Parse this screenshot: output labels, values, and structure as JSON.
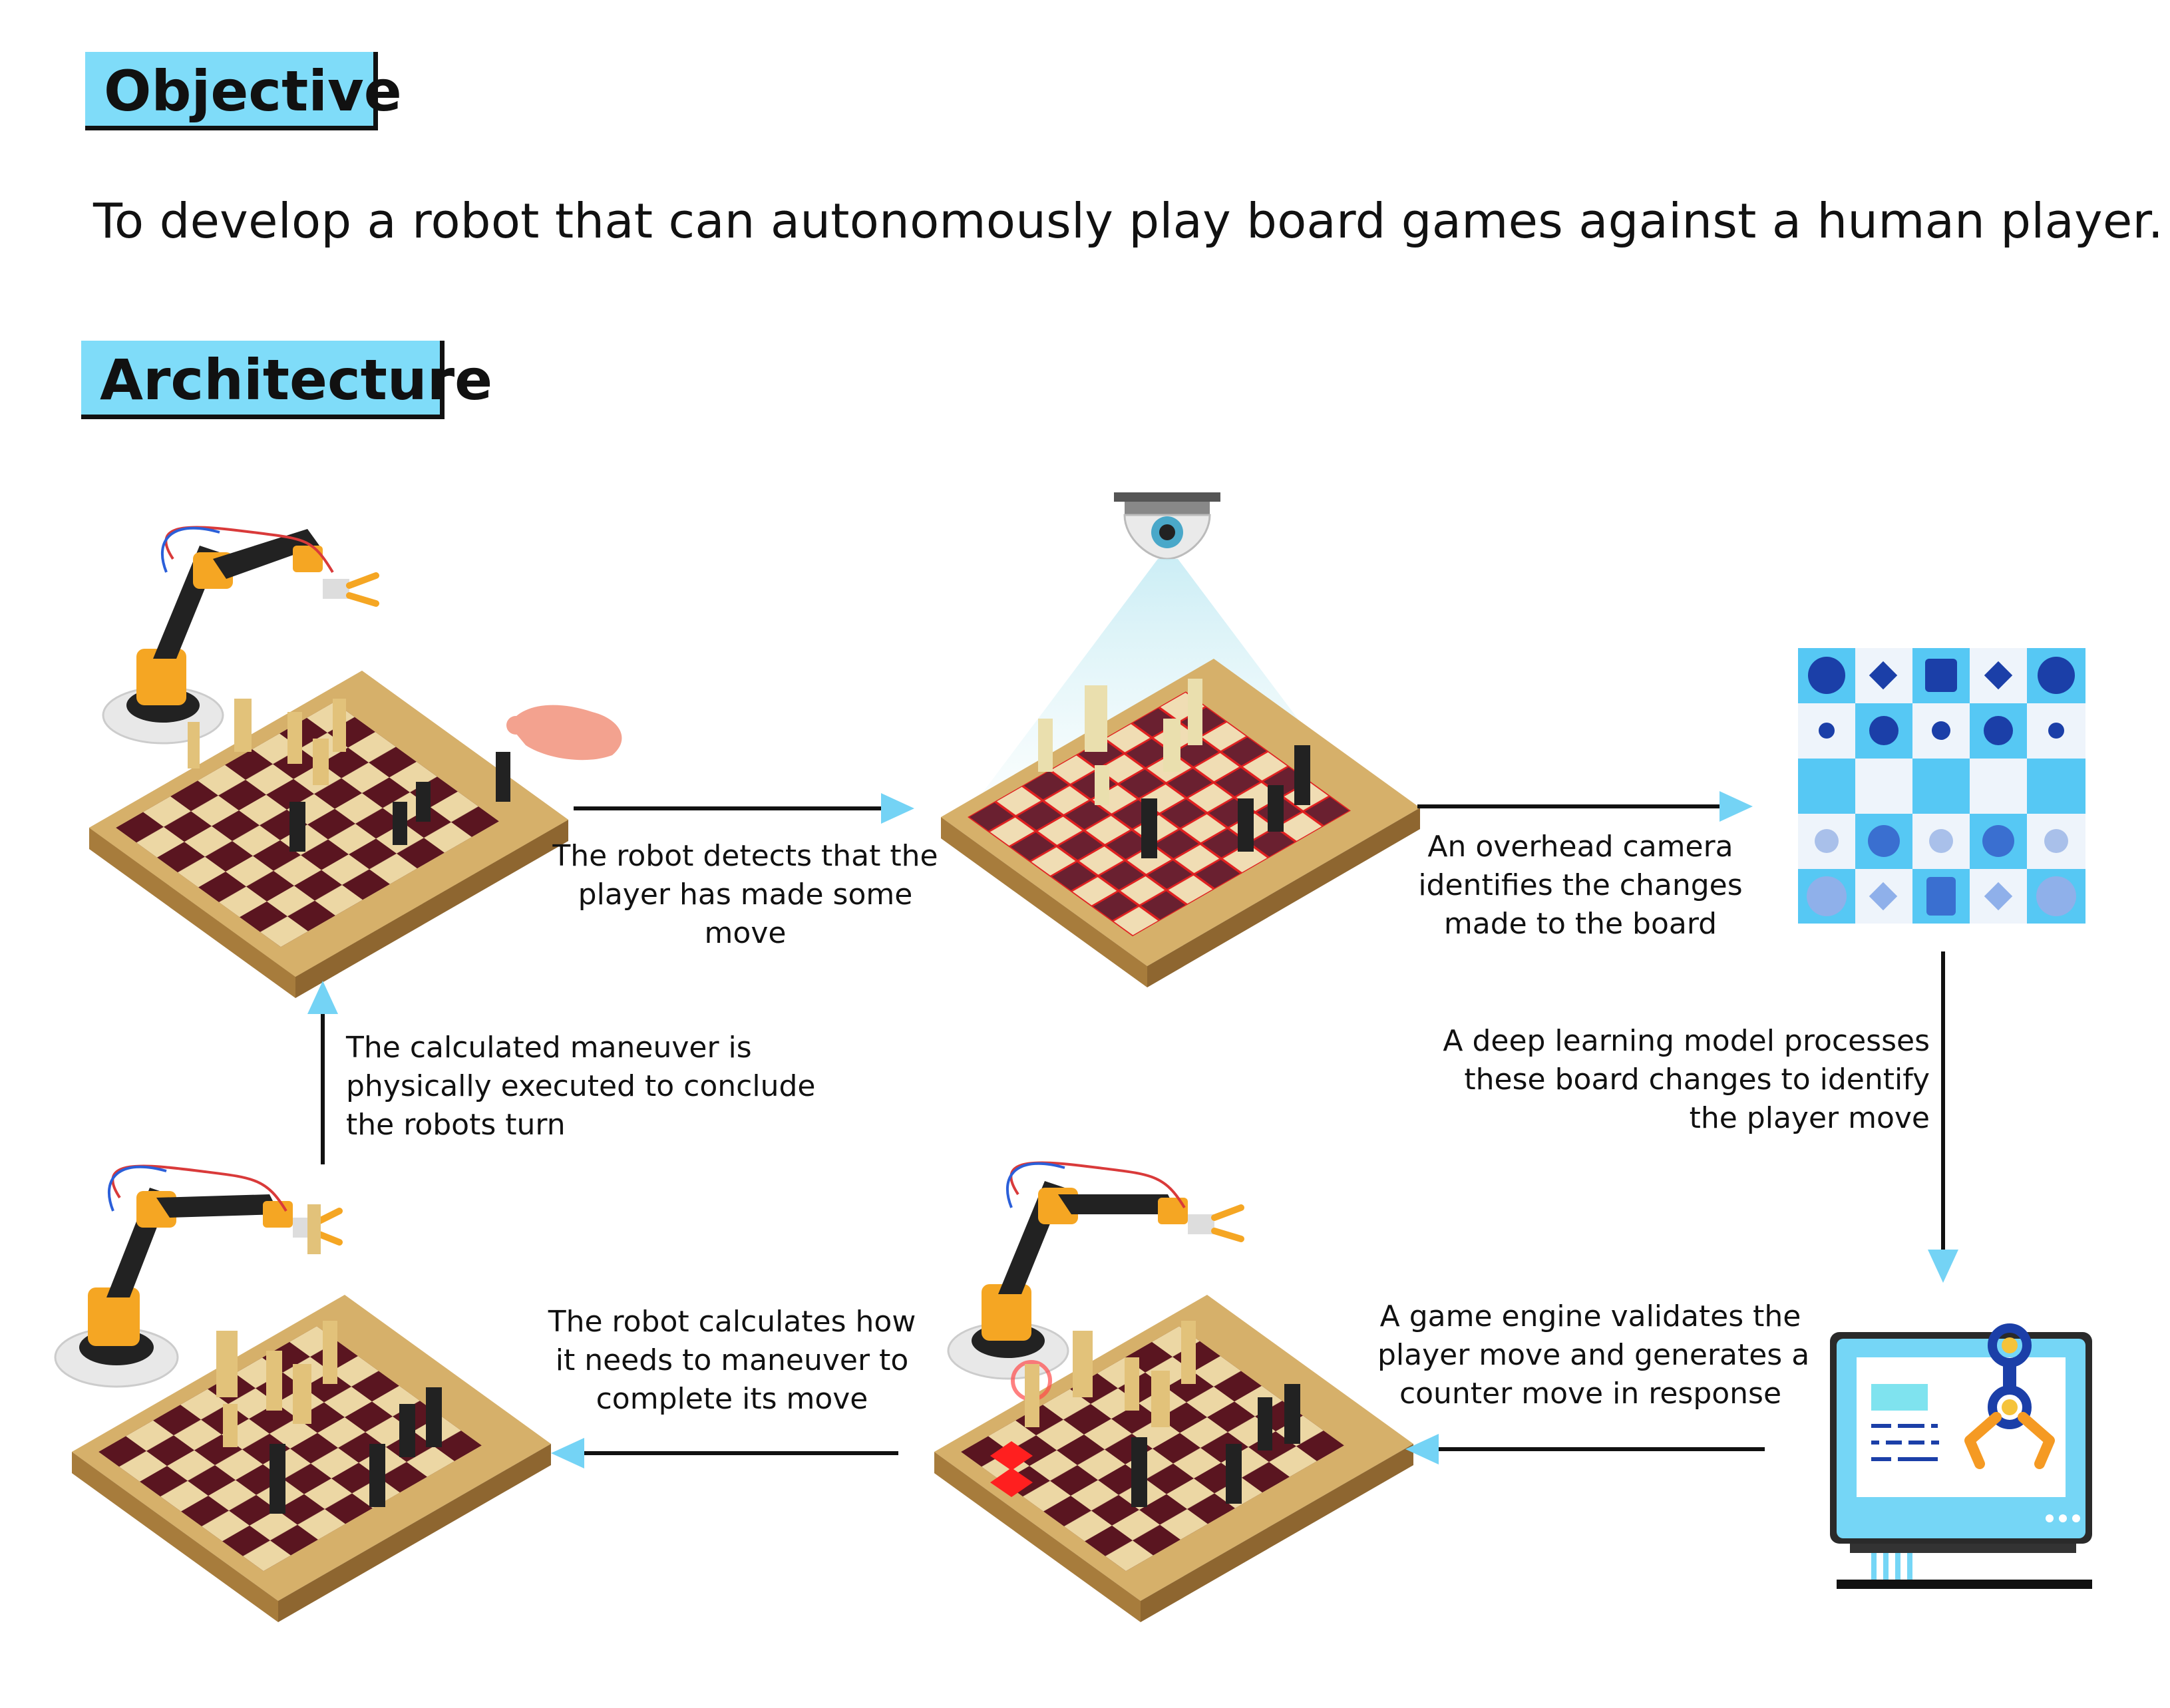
{
  "objective": {
    "heading": "Objective",
    "text": "To develop a  robot that can autonomously play board games  against a human player."
  },
  "architecture": {
    "heading": "Architecture",
    "steps": [
      {
        "id": "detect",
        "lines": [
          "The robot detects that the",
          "player has made some",
          "move"
        ]
      },
      {
        "id": "camera",
        "lines": [
          "An overhead camera",
          "identifies the changes",
          "made to the board"
        ]
      },
      {
        "id": "model",
        "lines": [
          "A deep learning model processes",
          "these board changes to identify",
          "the player move"
        ]
      },
      {
        "id": "engine",
        "lines": [
          "A game engine validates the",
          "player move and generates a",
          "counter move in response"
        ]
      },
      {
        "id": "calculate",
        "lines": [
          "The robot calculates how",
          "it needs to maneuver to",
          "complete its move"
        ]
      },
      {
        "id": "execute",
        "lines": [
          "The calculated maneuver is",
          "physically executed to conclude",
          "the robots turn"
        ]
      }
    ]
  },
  "colors": {
    "accent": "#7fdcf9",
    "arrow": "#74d3f5",
    "board_dark": "#5a1520",
    "board_light": "#ecd7a4",
    "board_frame": "#d6b06a",
    "robot_orange": "#f5a623",
    "highlight_red": "#ff1f1f",
    "grid_blue": "#2c7fd6"
  },
  "icons": {
    "robot": "robot-arm-icon",
    "camera": "ceiling-camera-icon",
    "hand": "human-hand-icon",
    "monitor": "computer-monitor-icon",
    "gripper": "gripper-icon"
  }
}
